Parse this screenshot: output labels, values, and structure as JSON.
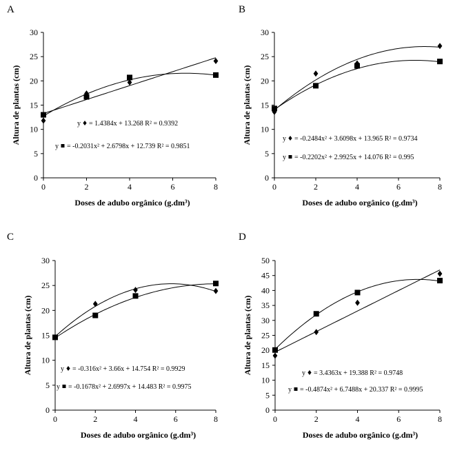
{
  "chart_data": [
    {
      "type": "scatter",
      "letter": "A",
      "xlabel": "Doses de adubo orgânico (g.dm³)",
      "ylabel": "Altura de plantas (cm)",
      "xlim": [
        0,
        8
      ],
      "xticks": [
        0,
        2,
        4,
        6,
        8
      ],
      "ylim": [
        0,
        30
      ],
      "yticks": [
        0,
        5,
        10,
        15,
        20,
        25,
        30
      ],
      "series": [
        {
          "name": "diamond",
          "marker": "diamond",
          "x": [
            0,
            2,
            4,
            8
          ],
          "y": [
            11.8,
            17.4,
            19.7,
            24.1
          ],
          "fit": {
            "a": 0,
            "b": 1.4384,
            "c": 13.268
          }
        },
        {
          "name": "square",
          "marker": "square",
          "x": [
            0,
            2,
            4,
            8
          ],
          "y": [
            13.0,
            16.7,
            20.7,
            21.2
          ],
          "fit": {
            "a": -0.2031,
            "b": 2.6798,
            "c": 12.739
          }
        }
      ],
      "equations": [
        {
          "prefix": "y",
          "marker": "diamond",
          "text": "= 1.4384x + 13.268 R² = 0.9392"
        },
        {
          "prefix": "y",
          "marker": "square",
          "text": "= -0.2031x² + 2.6798x + 12.739 R² = 0.9851"
        }
      ]
    },
    {
      "type": "scatter",
      "letter": "B",
      "xlabel": "Doses de adubo orgânico (g.dm³)",
      "ylabel": "Altura de plantas (cm)",
      "xlim": [
        0,
        8
      ],
      "xticks": [
        0,
        2,
        4,
        6,
        8
      ],
      "ylim": [
        0,
        30
      ],
      "yticks": [
        0,
        5,
        10,
        15,
        20,
        25,
        30
      ],
      "series": [
        {
          "name": "diamond",
          "marker": "diamond",
          "x": [
            0,
            2,
            4,
            8
          ],
          "y": [
            13.6,
            21.5,
            23.6,
            27.2
          ],
          "fit": {
            "a": -0.2484,
            "b": 3.6098,
            "c": 13.965
          }
        },
        {
          "name": "square",
          "marker": "square",
          "x": [
            0,
            2,
            4,
            8
          ],
          "y": [
            14.3,
            19.0,
            23.1,
            24.0
          ],
          "fit": {
            "a": -0.2202,
            "b": 2.9925,
            "c": 14.076
          }
        }
      ],
      "equations": [
        {
          "prefix": "y",
          "marker": "diamond",
          "text": "= -0.2484x² + 3.6098x + 13.965 R² = 0.9734"
        },
        {
          "prefix": "y",
          "marker": "square",
          "text": "= -0.2202x² + 2.9925x + 14.076 R² = 0.995"
        }
      ]
    },
    {
      "type": "scatter",
      "letter": "C",
      "xlabel": "Doses de adubo orgânico (g.dm³)",
      "ylabel": "Altura de plantas (cm)",
      "xlim": [
        0,
        8
      ],
      "xticks": [
        0,
        2,
        4,
        6,
        8
      ],
      "ylim": [
        0,
        30
      ],
      "yticks": [
        0,
        5,
        10,
        15,
        20,
        25,
        30
      ],
      "series": [
        {
          "name": "diamond",
          "marker": "diamond",
          "x": [
            0,
            2,
            4,
            8
          ],
          "y": [
            14.6,
            21.3,
            24.1,
            23.9
          ],
          "fit": {
            "a": -0.316,
            "b": 3.66,
            "c": 14.754
          }
        },
        {
          "name": "square",
          "marker": "square",
          "x": [
            0,
            2,
            4,
            8
          ],
          "y": [
            14.6,
            19.0,
            22.9,
            25.4
          ],
          "fit": {
            "a": -0.1678,
            "b": 2.6997,
            "c": 14.483
          }
        }
      ],
      "equations": [
        {
          "prefix": "y",
          "marker": "diamond",
          "text": "= -0.316x² + 3.66x + 14.754 R² = 0.9929"
        },
        {
          "prefix": "y",
          "marker": "square",
          "text": "= -0.1678x² + 2.6997x + 14.483 R² = 0.9975"
        }
      ]
    },
    {
      "type": "scatter",
      "letter": "D",
      "xlabel": "Doses de adubo orgânico (g.dm³)",
      "ylabel": "Altura de plantas (cm)",
      "xlim": [
        0,
        8
      ],
      "xticks": [
        0,
        2,
        4,
        6,
        8
      ],
      "ylim": [
        0,
        50
      ],
      "yticks": [
        0,
        5,
        10,
        15,
        20,
        25,
        30,
        35,
        40,
        45,
        50
      ],
      "series": [
        {
          "name": "diamond",
          "marker": "diamond",
          "x": [
            0,
            2,
            4,
            8
          ],
          "y": [
            18.2,
            26.1,
            35.9,
            45.6
          ],
          "fit": {
            "a": 0,
            "b": 3.4363,
            "c": 19.388
          }
        },
        {
          "name": "square",
          "marker": "square",
          "x": [
            0,
            2,
            4,
            8
          ],
          "y": [
            20.1,
            32.2,
            39.3,
            43.3
          ],
          "fit": {
            "a": -0.4874,
            "b": 6.7488,
            "c": 20.337
          }
        }
      ],
      "equations": [
        {
          "prefix": "y",
          "marker": "diamond",
          "text": "= 3.4363x + 19.388 R² = 0.9748"
        },
        {
          "prefix": "y",
          "marker": "square",
          "text": "= -0.4874x² + 6.7488x + 20.337 R² = 0.9995"
        }
      ]
    }
  ]
}
